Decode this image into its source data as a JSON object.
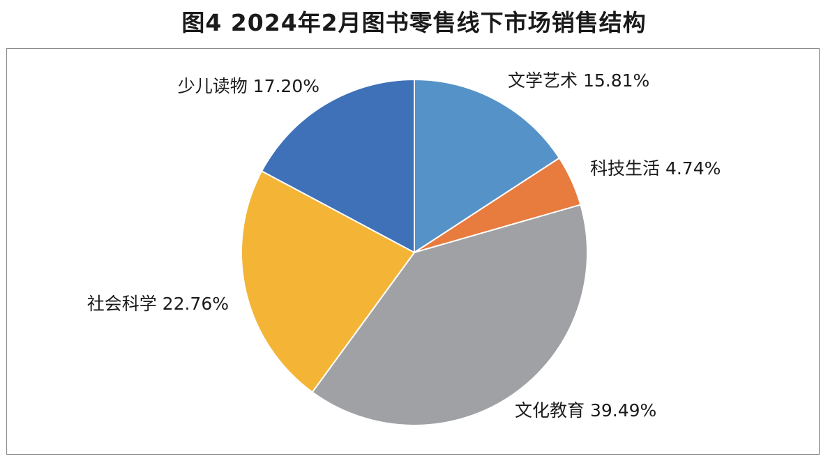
{
  "figure": {
    "title": "图4  2024年2月图书零售线下市场销售结构"
  },
  "chart_data": {
    "type": "pie",
    "title": "图4  2024年2月图书零售线下市场销售结构",
    "slices": [
      {
        "name": "文学艺术",
        "value": 15.81,
        "label": "文学艺术 15.81%",
        "color": "#5592c8"
      },
      {
        "name": "科技生活",
        "value": 4.74,
        "label": "科技生活 4.74%",
        "color": "#e87b3e"
      },
      {
        "name": "文化教育",
        "value": 39.49,
        "label": "文化教育 39.49%",
        "color": "#a0a1a5"
      },
      {
        "name": "社会科学",
        "value": 22.76,
        "label": "社会科学 22.76%",
        "color": "#f4b436"
      },
      {
        "name": "少儿读物",
        "value": 17.2,
        "label": "少儿读物 17.20%",
        "color": "#3e71b8"
      }
    ],
    "start_angle": "12 o'clock",
    "direction": "clockwise",
    "legend": "none",
    "slice_border_color": "#ffffff"
  }
}
